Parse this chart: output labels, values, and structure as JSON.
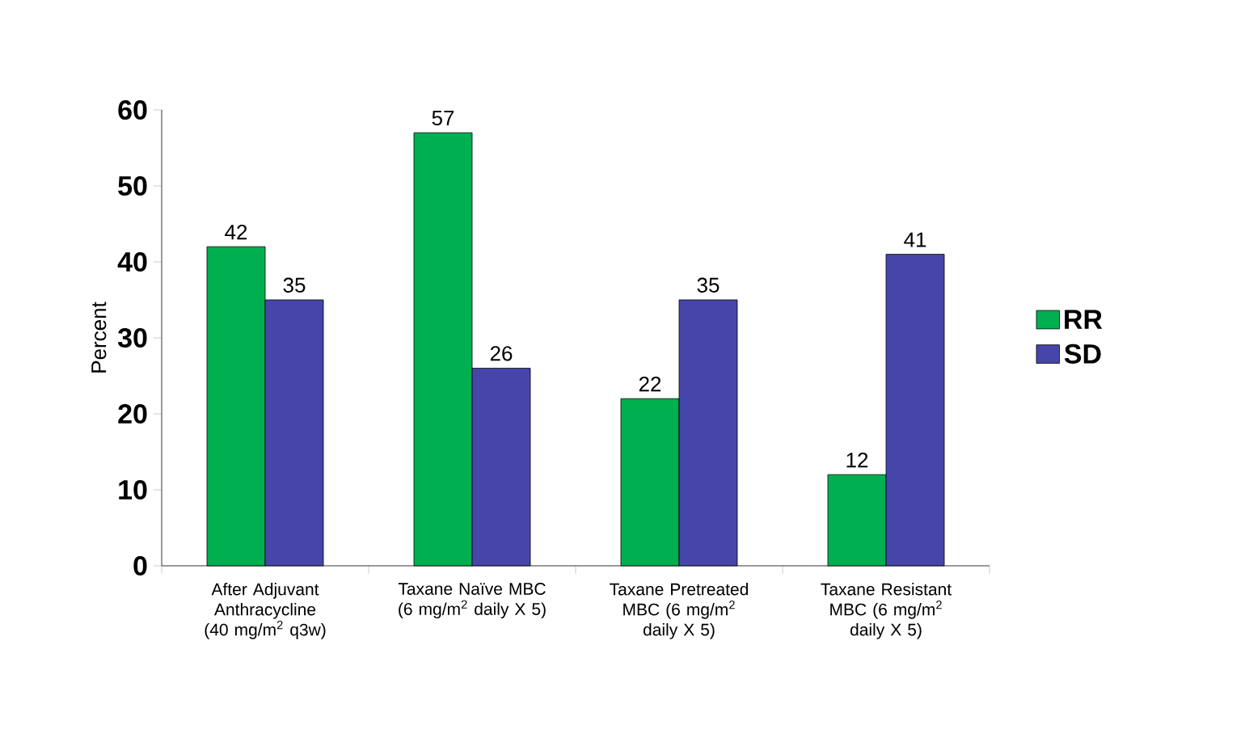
{
  "chart_data": {
    "type": "bar",
    "ylabel": "Percent",
    "categories": [
      "After Adjuvant Anthracycline (40 mg/m$^{2}$ q3w)",
      "Taxane Naïve MBC (6 mg/m$^{2}$ daily X 5)",
      "Taxane Pretreated MBC (6 mg/m$^{2}$ daily X 5)",
      "Taxane Resistant MBC (6 mg/m$^{2}$ daily X 5)"
    ],
    "series": [
      {
        "name": "RR",
        "color": "#00b050",
        "values": [
          42,
          57,
          22,
          12
        ]
      },
      {
        "name": "SD",
        "color": "#4646aa",
        "values": [
          35,
          26,
          35,
          41
        ]
      }
    ],
    "ylim": [
      0,
      60
    ],
    "yticks": [
      0,
      10,
      20,
      30,
      40,
      50,
      60
    ],
    "data_labels": true,
    "legend": "right",
    "grid": false
  }
}
